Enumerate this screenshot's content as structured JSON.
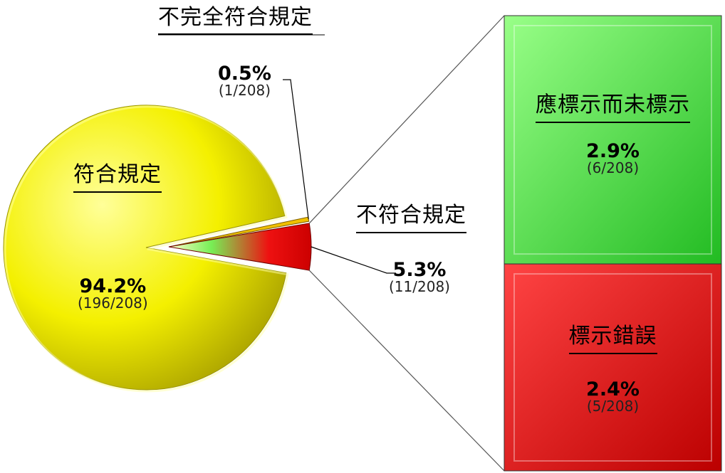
{
  "chart_data": [
    {
      "type": "pie",
      "slices": [
        {
          "label": "符合規定",
          "percent": "94.2%",
          "count": "(196/208)",
          "value": 196,
          "color": "#f2f200"
        },
        {
          "label": "不完全符合規定",
          "percent": "0.5%",
          "count": "(1/208)",
          "value": 1,
          "color": "#f0c000"
        },
        {
          "label": "不符合規定",
          "percent": "5.3%",
          "count": "(11/208)",
          "value": 11,
          "color": "#e80000"
        }
      ]
    },
    {
      "type": "bar",
      "stacked": true,
      "segments": [
        {
          "label": "應標示而未標示",
          "percent": "2.9%",
          "count": "(6/208)",
          "value": 6,
          "color": "#33dd33"
        },
        {
          "label": "標示錯誤",
          "percent": "2.4%",
          "count": "(5/208)",
          "value": 5,
          "color": "#ee0000"
        }
      ]
    }
  ]
}
